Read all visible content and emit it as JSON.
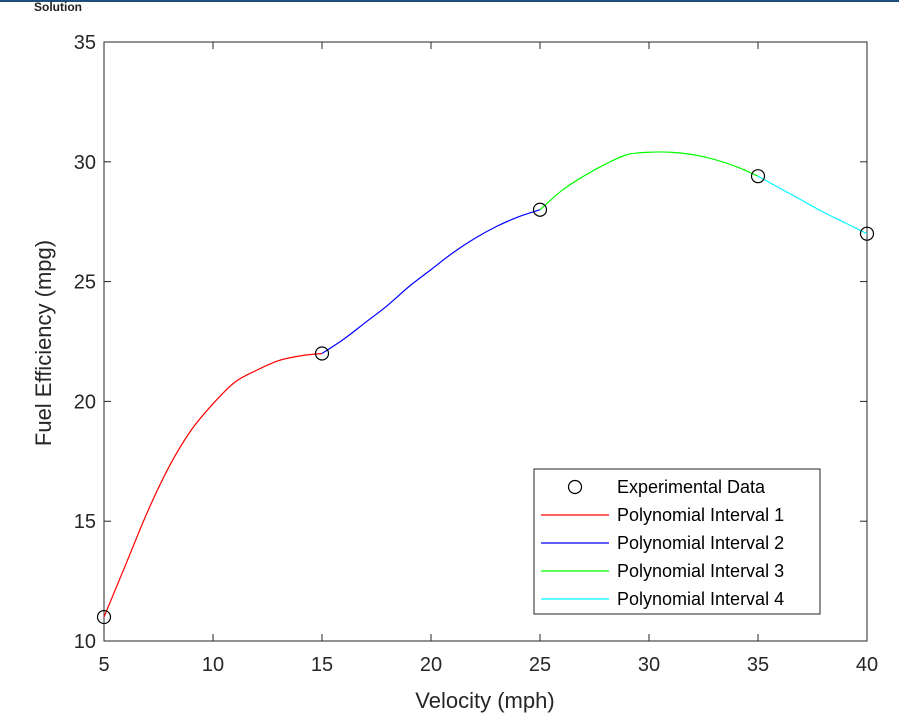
{
  "header": {
    "label": "Solution"
  },
  "chart_data": {
    "type": "line",
    "title": "",
    "xlabel": "Velocity (mph)",
    "ylabel": "Fuel Efficiency (mpg)",
    "xlim": [
      5,
      40
    ],
    "ylim": [
      10,
      35
    ],
    "xticks": [
      5,
      10,
      15,
      20,
      25,
      30,
      35,
      40
    ],
    "yticks": [
      10,
      15,
      20,
      25,
      30,
      35
    ],
    "grid": false,
    "legend_position": "bottom-right",
    "scatter": {
      "name": "Experimental Data",
      "marker": "open-circle",
      "color": "#000000",
      "x": [
        5,
        15,
        25,
        35,
        40
      ],
      "y": [
        11,
        22,
        28,
        29.4,
        27
      ]
    },
    "series": [
      {
        "name": "Polynomial Interval 1",
        "color": "#ff0000",
        "x": [
          5,
          6,
          7,
          8,
          9,
          10,
          11,
          12,
          13,
          14,
          15
        ],
        "y": [
          11,
          13.2,
          15.4,
          17.3,
          18.8,
          19.9,
          20.8,
          21.3,
          21.7,
          21.9,
          22
        ]
      },
      {
        "name": "Polynomial Interval 2",
        "color": "#0000ff",
        "x": [
          15,
          16,
          17,
          18,
          19,
          20,
          21,
          22,
          23,
          24,
          25
        ],
        "y": [
          22,
          22.6,
          23.3,
          24.0,
          24.8,
          25.5,
          26.2,
          26.8,
          27.3,
          27.7,
          28
        ]
      },
      {
        "name": "Polynomial Interval 3",
        "color": "#00ff00",
        "x": [
          25,
          26,
          27,
          28,
          29,
          30,
          31,
          32,
          33,
          34,
          35
        ],
        "y": [
          28,
          28.8,
          29.4,
          29.9,
          30.3,
          30.4,
          30.4,
          30.3,
          30.1,
          29.8,
          29.4
        ]
      },
      {
        "name": "Polynomial Interval 4",
        "color": "#00ffff",
        "x": [
          35,
          36,
          37,
          38,
          39,
          40
        ],
        "y": [
          29.4,
          28.9,
          28.4,
          27.9,
          27.45,
          27
        ]
      }
    ]
  }
}
